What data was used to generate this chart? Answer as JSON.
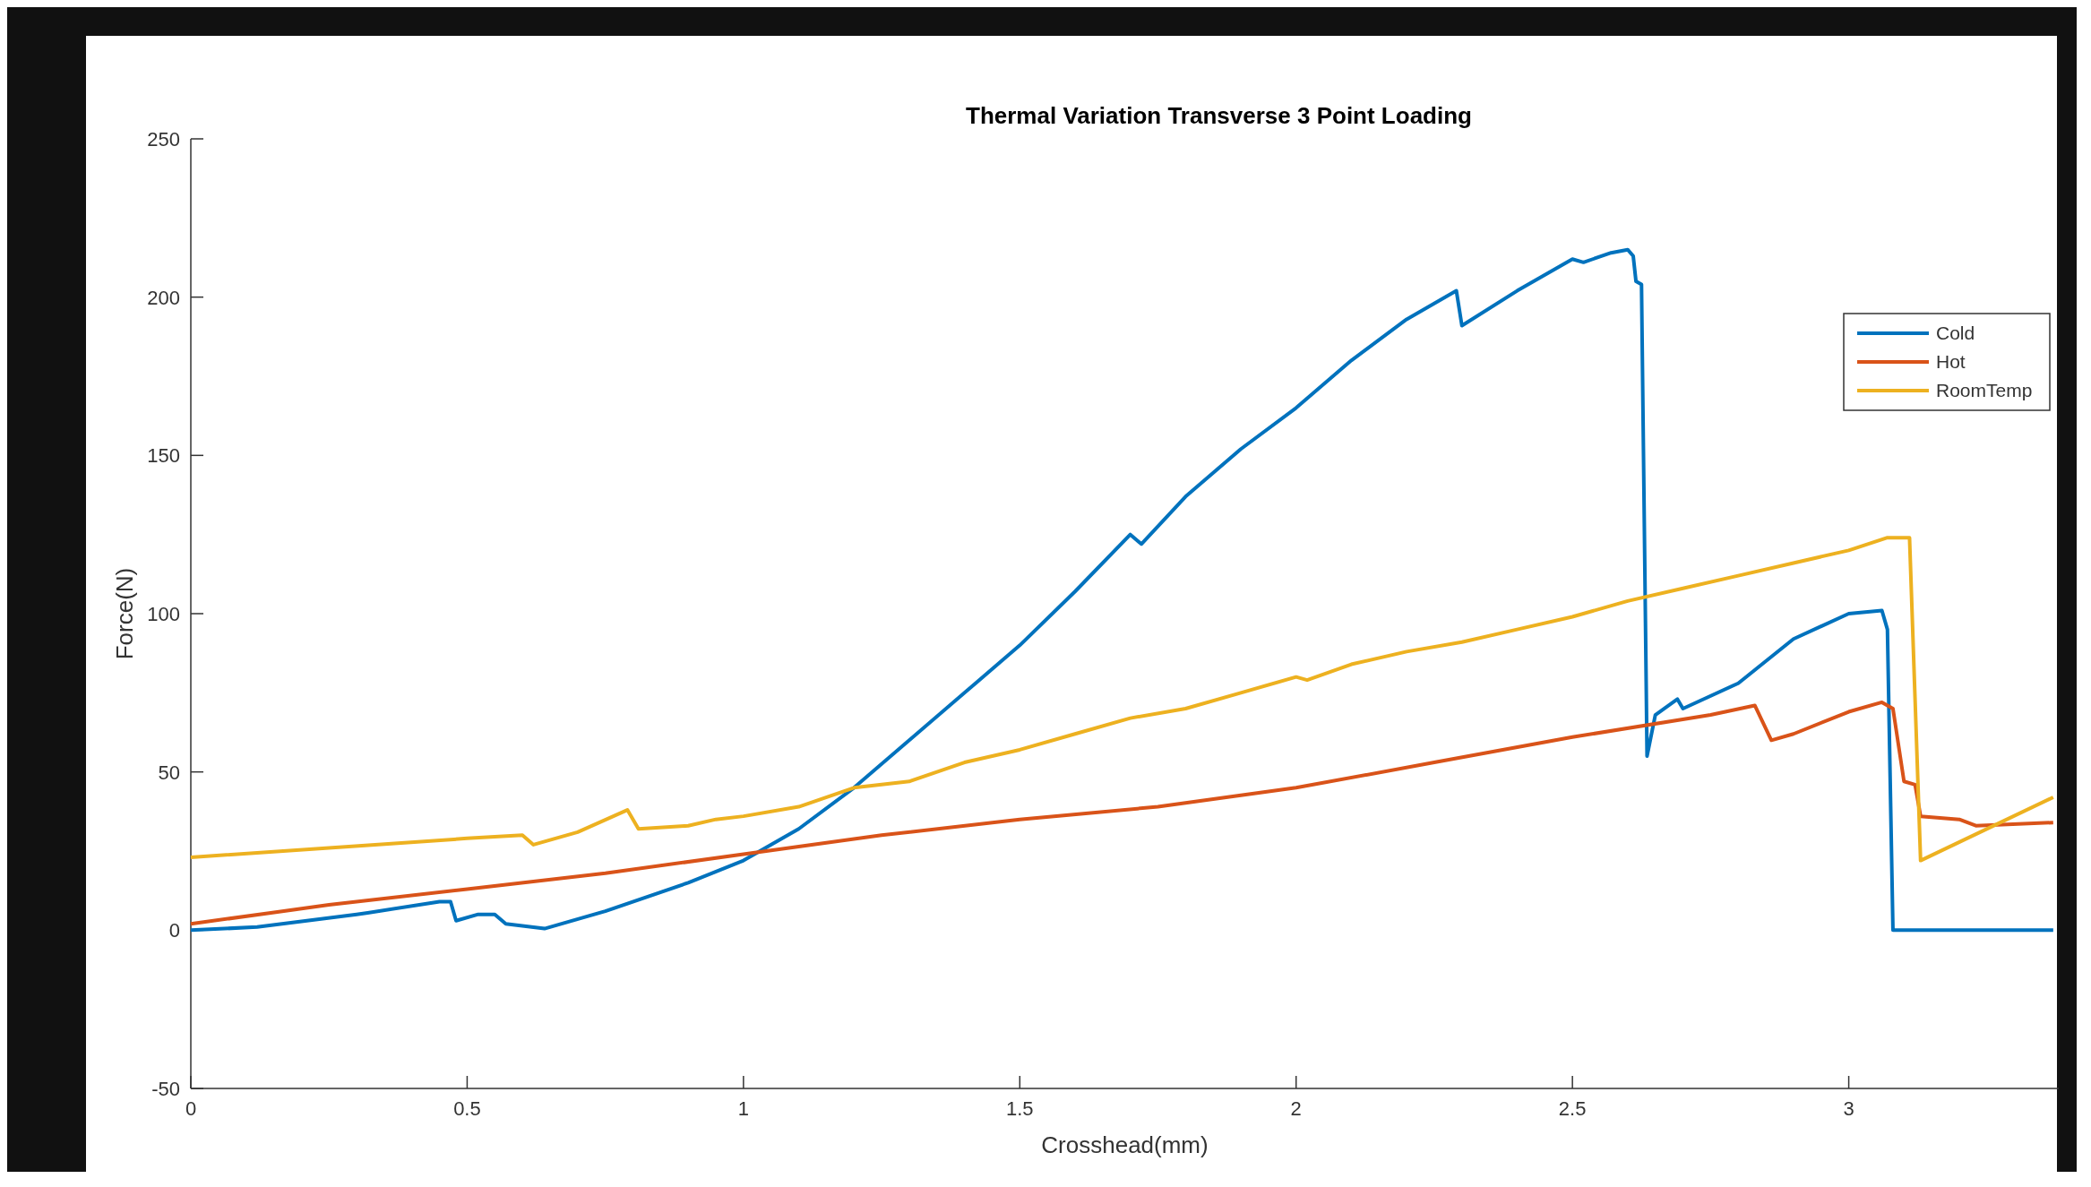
{
  "chart_data": {
    "type": "line",
    "title": "Thermal Variation Transverse 3 Point Loading",
    "xlabel": "Crosshead(mm)",
    "ylabel": "Force(N)",
    "xlim": [
      0,
      3.38
    ],
    "xticks": [
      0,
      0.5,
      1,
      1.5,
      2,
      2.5,
      3
    ],
    "ylim": [
      -50,
      250
    ],
    "yticks": [
      -50,
      0,
      50,
      100,
      150,
      200,
      250
    ],
    "grid": false,
    "legend": "top right",
    "line_style": "solid",
    "marker": "none",
    "series": [
      {
        "name": "Cold",
        "color": "#0072bd",
        "x": [
          0,
          0.12,
          0.3,
          0.32,
          0.45,
          0.47,
          0.48,
          0.52,
          0.55,
          0.57,
          0.64,
          0.75,
          0.9,
          1.0,
          1.1,
          1.2,
          1.3,
          1.4,
          1.5,
          1.6,
          1.7,
          1.72,
          1.8,
          1.9,
          2.0,
          2.1,
          2.2,
          2.29,
          2.3,
          2.4,
          2.5,
          2.52,
          2.57,
          2.6,
          2.61,
          2.615,
          2.625,
          2.635,
          2.65,
          2.69,
          2.7,
          2.8,
          2.9,
          3.0,
          3.06,
          3.07,
          3.08,
          3.37
        ],
        "values": [
          0,
          1,
          5,
          5.5,
          9,
          9,
          3,
          5,
          5,
          2,
          0.5,
          6,
          15,
          22,
          32,
          45,
          60,
          75,
          90,
          107,
          125,
          122,
          137,
          152,
          165,
          180,
          193,
          202,
          191,
          202,
          212,
          211,
          214,
          215,
          213,
          205,
          204,
          55,
          68,
          73,
          70,
          78,
          92,
          100,
          101,
          95,
          0,
          0
        ]
      },
      {
        "name": "Hot",
        "color": "#d95319",
        "x": [
          0,
          0.25,
          0.5,
          0.75,
          1.0,
          1.25,
          1.5,
          1.75,
          2.0,
          2.25,
          2.5,
          2.75,
          2.83,
          2.86,
          2.9,
          3.0,
          3.06,
          3.08,
          3.1,
          3.12,
          3.13,
          3.2,
          3.23,
          3.37
        ],
        "values": [
          2,
          8,
          13,
          18,
          24,
          30,
          35,
          39,
          45,
          53,
          61,
          68,
          71,
          60,
          62,
          69,
          72,
          70,
          47,
          46,
          36,
          35,
          33,
          34
        ]
      },
      {
        "name": "RoomTemp",
        "color": "#edb120",
        "x": [
          0,
          0.25,
          0.5,
          0.6,
          0.62,
          0.7,
          0.79,
          0.81,
          0.9,
          0.95,
          1.0,
          1.1,
          1.2,
          1.3,
          1.4,
          1.5,
          1.6,
          1.7,
          1.8,
          1.9,
          2.0,
          2.02,
          2.1,
          2.2,
          2.3,
          2.4,
          2.5,
          2.6,
          2.7,
          2.8,
          2.9,
          3.0,
          3.07,
          3.11,
          3.13,
          3.37
        ],
        "values": [
          23,
          26,
          29,
          30,
          27,
          31,
          38,
          32,
          33,
          35,
          36,
          39,
          45,
          47,
          53,
          57,
          62,
          67,
          70,
          75,
          80,
          79,
          84,
          88,
          91,
          95,
          99,
          104,
          108,
          112,
          116,
          120,
          124,
          124,
          22,
          42
        ]
      }
    ]
  }
}
